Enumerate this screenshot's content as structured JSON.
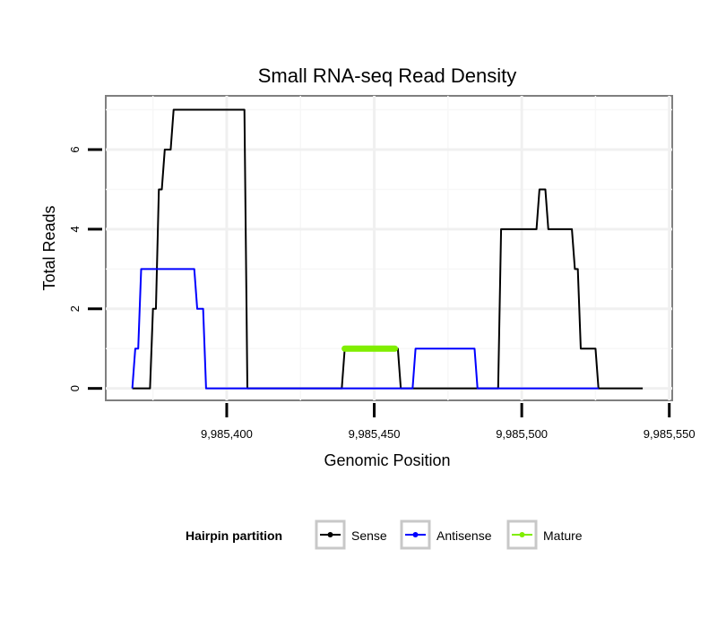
{
  "chart_data": {
    "type": "line",
    "title": "Small RNA-seq Read Density",
    "xlabel": "Genomic Position",
    "ylabel": "Total Reads",
    "xlim": [
      9985359,
      9985551
    ],
    "ylim": [
      -0.3,
      7.35
    ],
    "x_ticks": [
      9985400,
      9985450,
      9985500,
      9985550
    ],
    "x_tick_labels": [
      "9,985,400",
      "9,985,450",
      "9,985,500",
      "9,985,550"
    ],
    "y_ticks": [
      0,
      2,
      4,
      6
    ],
    "y_tick_labels": [
      "0",
      "2",
      "4",
      "6"
    ],
    "grid": true,
    "legend": {
      "position": "bottom",
      "title": "Hairpin partition",
      "entries": [
        "Sense",
        "Antisense",
        "Mature"
      ]
    },
    "series": [
      {
        "name": "Sense",
        "color": "#000000",
        "x": [
          9985368,
          9985374,
          9985375,
          9985376,
          9985377,
          9985378,
          9985379,
          9985380,
          9985381,
          9985382,
          9985383,
          9985384,
          9985385,
          9985406,
          9985407,
          9985439,
          9985440,
          9985458,
          9985459,
          9985492,
          9985493,
          9985505,
          9985506,
          9985508,
          9985509,
          9985517,
          9985518,
          9985519,
          9985520,
          9985521,
          9985525,
          9985526,
          9985541
        ],
        "y": [
          0,
          0,
          2,
          2,
          5,
          5,
          6,
          6,
          6,
          7,
          7,
          7,
          7,
          7,
          0,
          0,
          1,
          1,
          0,
          0,
          4,
          4,
          5,
          5,
          4,
          4,
          3,
          3,
          1,
          1,
          1,
          0,
          0
        ]
      },
      {
        "name": "Antisense",
        "color": "#0000ff",
        "x": [
          9985368,
          9985369,
          9985370,
          9985371,
          9985389,
          9985390,
          9985392,
          9985393,
          9985463,
          9985464,
          9985484,
          9985485,
          9985526
        ],
        "y": [
          0,
          1,
          1,
          3,
          3,
          2,
          2,
          0,
          0,
          1,
          1,
          0,
          0
        ]
      },
      {
        "name": "Mature",
        "color": "#80ee00",
        "x": [
          9985440,
          9985457
        ],
        "y": [
          1,
          1
        ]
      }
    ]
  }
}
